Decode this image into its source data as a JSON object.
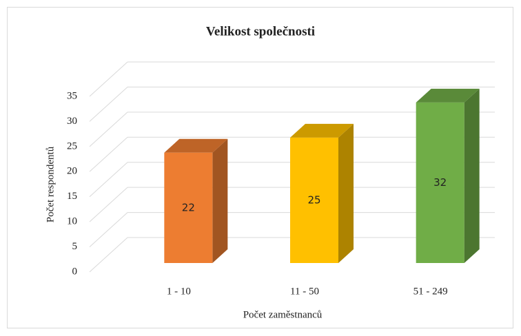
{
  "chart_data": {
    "type": "bar3d",
    "title": "Velikost společnosti",
    "x_label": "Počet zaměstnanců",
    "y_label": "Počet respondentů",
    "categories": [
      "1 - 10",
      "11 - 50",
      "51 - 249"
    ],
    "values": [
      22,
      25,
      32
    ],
    "colors": [
      "#ED7D31",
      "#FFC000",
      "#70AD47"
    ],
    "ylim": [
      0,
      35
    ],
    "yticks": [
      0,
      5,
      10,
      15,
      20,
      25,
      30,
      35
    ],
    "grid": true
  }
}
